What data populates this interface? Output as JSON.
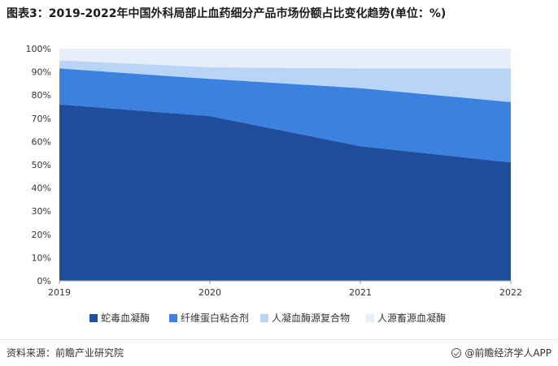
{
  "header": {
    "title": "图表3：2019-2022年中国外科局部止血药细分产品市场份额占比变化趋势(单位：%)"
  },
  "chart_data": {
    "type": "area",
    "stacked": true,
    "x": [
      "2019",
      "2020",
      "2021",
      "2022"
    ],
    "ylim": [
      0,
      100
    ],
    "yticks": [
      "0%",
      "10%",
      "20%",
      "30%",
      "40%",
      "50%",
      "60%",
      "70%",
      "80%",
      "90%",
      "100%"
    ],
    "grid": false,
    "legend_position": "bottom",
    "series": [
      {
        "name": "蛇毒血凝酶",
        "values": [
          76,
          71,
          58,
          51
        ],
        "color": "#1f4e9c"
      },
      {
        "name": "纤维蛋白粘合剂",
        "values": [
          15.5,
          16,
          25,
          26
        ],
        "color": "#3b82e0"
      },
      {
        "name": "人凝血酶源复合物",
        "values": [
          3.5,
          5,
          8.5,
          14.5
        ],
        "color": "#b9d4f4"
      },
      {
        "name": "人源畜源血凝酶",
        "values": [
          5,
          8,
          8.5,
          8.5
        ],
        "color": "#e6eef9"
      }
    ]
  },
  "footer": {
    "source": "资料来源：前瞻产业研究院",
    "brand": "@前瞻经济学人APP"
  }
}
